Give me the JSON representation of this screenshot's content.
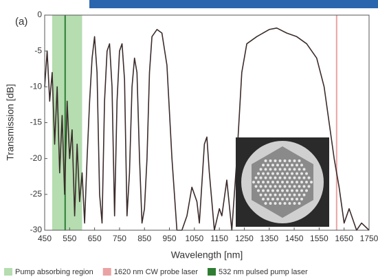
{
  "chart_data": {
    "type": "line",
    "annotation": "(a)",
    "x_label": "Wavelength [nm]",
    "y_label": "Transmission [dB]",
    "xlim": [
      450,
      1750
    ],
    "ylim": [
      -30,
      0
    ],
    "xticks": [
      450,
      550,
      650,
      750,
      850,
      950,
      1050,
      1150,
      1250,
      1350,
      1450,
      1550,
      1650,
      1750
    ],
    "yticks": [
      0,
      -5,
      -10,
      -15,
      -20,
      -25,
      -30
    ],
    "regions": [
      {
        "name": "Pump absorbing region",
        "color": "#b5ddb0",
        "range": [
          480,
          600
        ]
      }
    ],
    "lines": [
      {
        "name": "1620 nm CW probe laser",
        "color": "#eaa3a3",
        "x": 1620
      },
      {
        "name": "532 nm pulsed pump laser",
        "color": "#2e7d32",
        "x": 532
      }
    ],
    "series": [
      {
        "color": "#3b2b2b",
        "x": [
          450,
          460,
          470,
          480,
          490,
          500,
          510,
          520,
          530,
          540,
          550,
          560,
          570,
          580,
          590,
          600,
          610,
          620,
          630,
          640,
          650,
          660,
          670,
          680,
          690,
          700,
          710,
          720,
          730,
          740,
          750,
          760,
          770,
          780,
          790,
          800,
          810,
          820,
          830,
          840,
          850,
          860,
          870,
          880,
          900,
          920,
          940,
          960,
          980,
          1000,
          1020,
          1040,
          1060,
          1070,
          1090,
          1100,
          1110,
          1130,
          1150,
          1160,
          1180,
          1200,
          1220,
          1240,
          1260,
          1300,
          1350,
          1380,
          1420,
          1460,
          1500,
          1540,
          1570,
          1590,
          1610,
          1630,
          1650,
          1670,
          1700,
          1720,
          1750
        ],
        "values": [
          -10,
          -5,
          -12,
          -8,
          -18,
          -10,
          -22,
          -14,
          -25,
          -12,
          -20,
          -16,
          -28,
          -18,
          -26,
          -22,
          -29,
          -20,
          -12,
          -6,
          -3,
          -8,
          -25,
          -29,
          -12,
          -5,
          -4,
          -10,
          -28,
          -12,
          -5,
          -4,
          -9,
          -28,
          -22,
          -10,
          -6,
          -8,
          -20,
          -29,
          -27,
          -20,
          -8,
          -3,
          -2,
          -2.5,
          -7,
          -20,
          -30,
          -30,
          -28,
          -24,
          -26,
          -29,
          -18,
          -17,
          -22,
          -30,
          -27,
          -28,
          -23,
          -30,
          -20,
          -8,
          -4,
          -3,
          -2,
          -1.8,
          -2.5,
          -3,
          -4,
          -6,
          -10,
          -15,
          -20,
          -24,
          -29,
          -27,
          -30,
          -29,
          -30
        ]
      }
    ]
  }
}
